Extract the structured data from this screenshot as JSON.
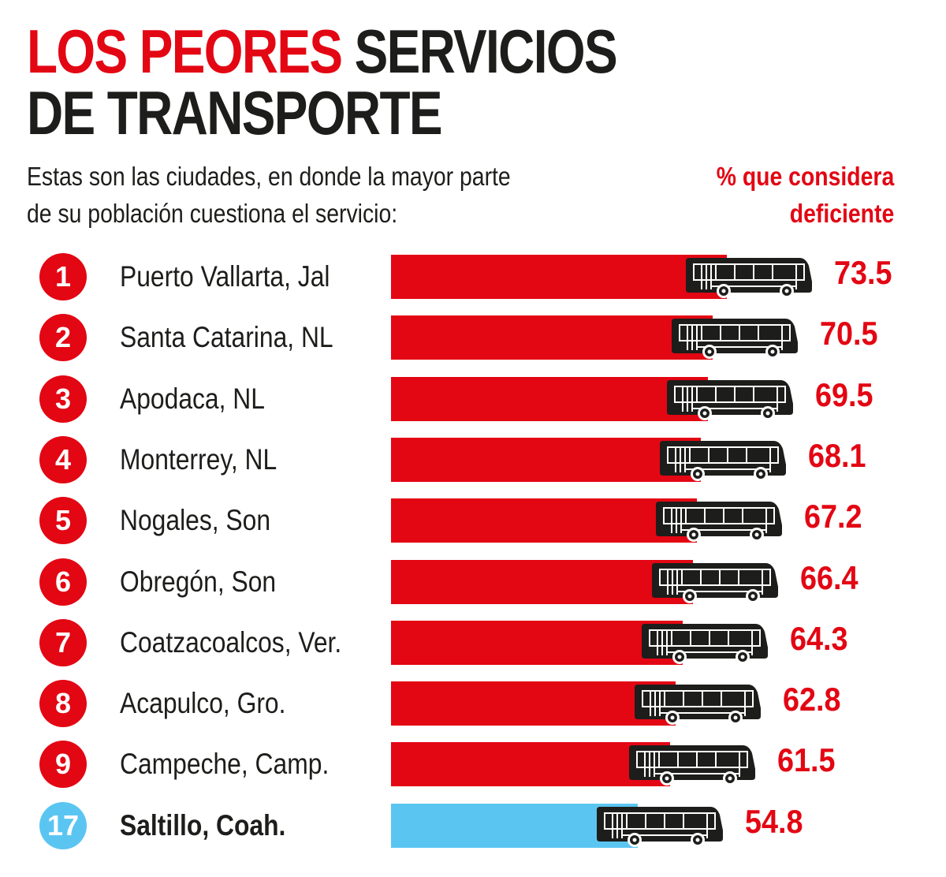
{
  "title": {
    "line1_red": "LOS PEORES",
    "line1_black": "SERVICIOS",
    "line2": "DE TRANSPORTE"
  },
  "subtitle": [
    "Estas son las ciudades, en donde la mayor parte",
    "de su población cuestiona el servicio:"
  ],
  "legend": [
    "% que considera",
    "deficiente"
  ],
  "colors": {
    "red": "#e30613",
    "blue": "#5bc5f2",
    "black": "#1d1d1b"
  },
  "chart_data": {
    "type": "bar",
    "title": "LOS PEORES SERVICIOS DE TRANSPORTE",
    "ylabel": "% que considera deficiente",
    "categories": [
      "Puerto Vallarta, Jal",
      "Santa Catarina, NL",
      "Apodaca, NL",
      "Monterrey, NL",
      "Nogales, Son",
      "Obregón, Son",
      "Coatzacoalcos, Ver.",
      "Acapulco, Gro.",
      "Campeche, Camp.",
      "Saltillo, Coah."
    ],
    "ranks": [
      "1",
      "2",
      "3",
      "4",
      "5",
      "6",
      "7",
      "8",
      "9",
      "17"
    ],
    "values": [
      73.5,
      70.5,
      69.5,
      68.1,
      67.2,
      66.4,
      64.3,
      62.8,
      61.5,
      54.8
    ],
    "labels": [
      "73.5",
      "70.5",
      "69.5",
      "68.1",
      "67.2",
      "66.4",
      "64.3",
      "62.8",
      "61.5",
      "54.8"
    ],
    "highlight": [
      false,
      false,
      false,
      false,
      false,
      false,
      false,
      false,
      false,
      true
    ]
  }
}
